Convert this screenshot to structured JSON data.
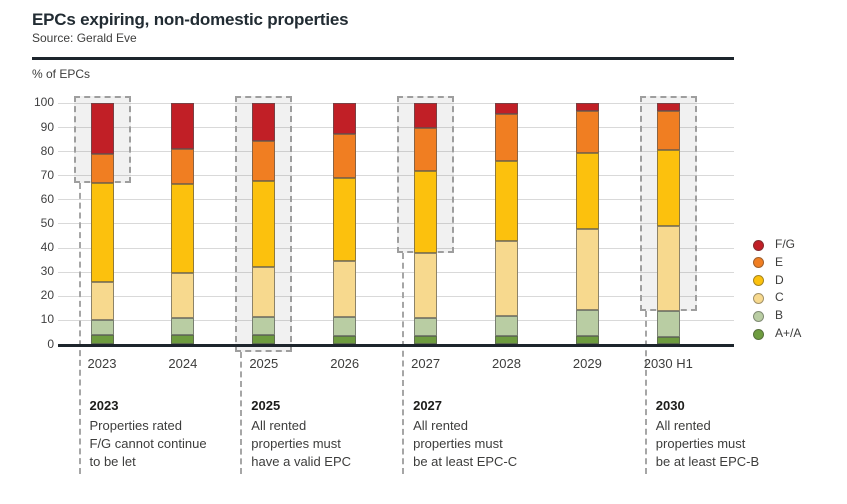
{
  "header": {
    "title": "EPCs expiring, non-domestic properties",
    "source": "Source: Gerald Eve"
  },
  "chart_data": {
    "type": "bar",
    "stacked": true,
    "title": "EPCs expiring, non-domestic properties",
    "ylabel": "% of EPCs",
    "xlabel": "",
    "ylim": [
      0,
      100
    ],
    "yticks": [
      0,
      10,
      20,
      30,
      40,
      50,
      60,
      70,
      80,
      90,
      100
    ],
    "grid": true,
    "legend_position": "right",
    "legend_order_top_to_bottom": [
      "F/G",
      "E",
      "D",
      "C",
      "B",
      "A+/A"
    ],
    "categories": [
      "2023",
      "2024",
      "2025",
      "2026",
      "2027",
      "2028",
      "2029",
      "2030 H1"
    ],
    "series": [
      {
        "name": "A+/A",
        "color": "#6e9c3f",
        "values": [
          4,
          4,
          4,
          3.5,
          3.5,
          3.5,
          3.5,
          3
        ]
      },
      {
        "name": "B",
        "color": "#b9cda3",
        "values": [
          6,
          7,
          7.5,
          8,
          7.5,
          8.5,
          11,
          11
        ]
      },
      {
        "name": "C",
        "color": "#f7d98e",
        "values": [
          16,
          18.5,
          20.5,
          23,
          27,
          31,
          33.5,
          35
        ]
      },
      {
        "name": "D",
        "color": "#fcc10d",
        "values": [
          41,
          37,
          36,
          34.5,
          34,
          33,
          31.5,
          31.5
        ]
      },
      {
        "name": "E",
        "color": "#f07e22",
        "values": [
          12,
          14.5,
          16.5,
          18.5,
          18,
          19.5,
          17.5,
          16.5
        ]
      },
      {
        "name": "F/G",
        "color": "#c11f26",
        "values": [
          21,
          19,
          15.5,
          12.5,
          10,
          4.5,
          3,
          3
        ]
      }
    ]
  },
  "milestones": [
    {
      "category": "2023",
      "year": "2023",
      "lines": [
        "Properties rated",
        "F/G cannot continue",
        "to be let"
      ],
      "highlight_from_pct": 67,
      "highlight_to_pct": 100,
      "full_column": false
    },
    {
      "category": "2025",
      "year": "2025",
      "lines": [
        "All rented",
        "properties must",
        "have a valid EPC"
      ],
      "highlight_from_pct": 0,
      "highlight_to_pct": 100,
      "full_column": true
    },
    {
      "category": "2027",
      "year": "2027",
      "lines": [
        "All rented",
        "properties must",
        "be at least EPC-C"
      ],
      "highlight_from_pct": 38,
      "highlight_to_pct": 100,
      "full_column": false
    },
    {
      "category": "2030 H1",
      "year": "2030",
      "lines": [
        "All rented",
        "properties must",
        "be at least EPC-B"
      ],
      "highlight_from_pct": 14,
      "highlight_to_pct": 100,
      "full_column": false
    }
  ],
  "style": {
    "axis_color": "#1d252c",
    "gridline_color": "#d9d9d9",
    "highlight_border_color": "#9e9e9e",
    "text_color": "#3d3d3c"
  }
}
